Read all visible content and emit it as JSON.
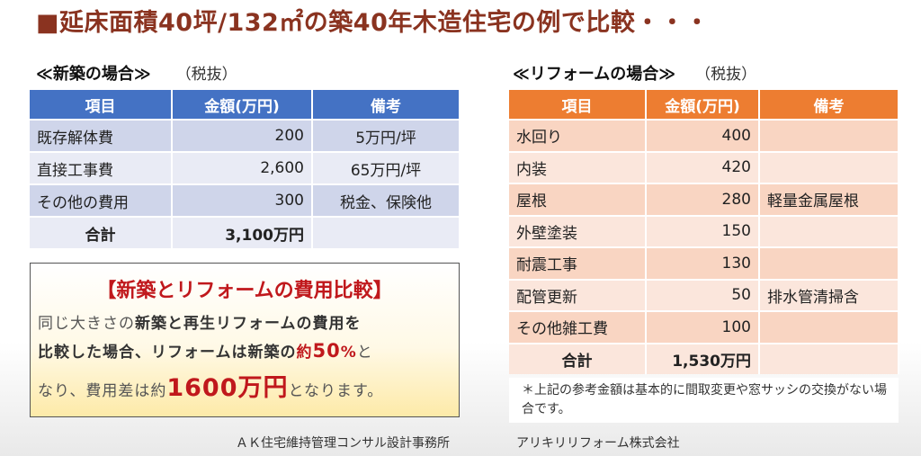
{
  "title": "■延床面積40坪/132㎡の築40年木造住宅の例で比較・・・",
  "new_build": {
    "heading": "≪新築の場合≫",
    "tax_note": "（税抜）",
    "headers": [
      "項目",
      "金額(万円)",
      "備考"
    ],
    "rows": [
      {
        "item": "既存解体費",
        "amount": "200",
        "note": "5万円/坪"
      },
      {
        "item": "直接工事費",
        "amount": "2,600",
        "note": "65万円/坪"
      },
      {
        "item": "その他の費用",
        "amount": "300",
        "note": "税金、保険他"
      }
    ],
    "total": {
      "label": "合計",
      "amount": "3,100万円",
      "note": ""
    }
  },
  "reform": {
    "heading": "≪リフォームの場合≫",
    "tax_note": "（税抜）",
    "headers": [
      "項目",
      "金額(万円)",
      "備考"
    ],
    "rows": [
      {
        "item": "水回り",
        "amount": "400",
        "note": ""
      },
      {
        "item": "内装",
        "amount": "420",
        "note": ""
      },
      {
        "item": "屋根",
        "amount": "280",
        "note": "軽量金属屋根"
      },
      {
        "item": "外壁塗装",
        "amount": "150",
        "note": ""
      },
      {
        "item": "耐震工事",
        "amount": "130",
        "note": ""
      },
      {
        "item": "配管更新",
        "amount": "50",
        "note": "排水管清掃含"
      },
      {
        "item": "その他雑工費",
        "amount": "100",
        "note": ""
      }
    ],
    "total": {
      "label": "合計",
      "amount": "1,530万円",
      "note": ""
    }
  },
  "comparison": {
    "title": "【新築とリフォームの費用比較】",
    "line1_a": "同じ大きさの",
    "line1_b": "新築と再生リフォームの費用を",
    "line2_a": "比較した場合、リフォームは新築の",
    "line2_b": "約",
    "line2_c": "50",
    "line2_d": "%",
    "line2_e": "と",
    "line3_a": "なり、費用差は約",
    "line3_b": "1600万円",
    "line3_c": "となります。"
  },
  "footnote": "＊上記の参考金額は基本的に間取変更や窓サッシの交換がない場合です。",
  "footer": {
    "left": "ＡＫ住宅維持管理コンサル設計事務所",
    "right": "アリキリリフォーム株式会社"
  }
}
